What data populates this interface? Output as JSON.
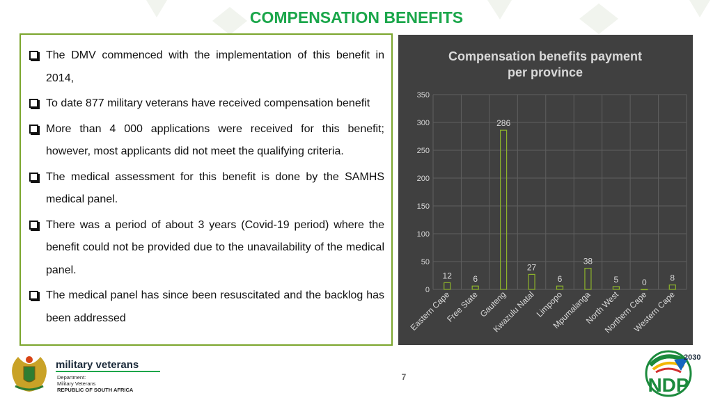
{
  "slide": {
    "title": "COMPENSATION BENEFITS",
    "page_number": "7"
  },
  "bullets": [
    "The DMV commenced with the implementation of this benefit in 2014,",
    "To date 877 military veterans have received compensation benefit",
    "More than 4 000 applications were received for this benefit; however, most applicants did not meet the qualifying criteria.",
    "The medical assessment for this benefit is done by the SAMHS medical panel.",
    "There was a period of about 3 years (Covid-19 period) where the benefit could not be provided due to the unavailability of the medical panel.",
    "The medical panel has since been resuscitated and the backlog has been addressed"
  ],
  "footer": {
    "brand_name": "military veterans",
    "dept_line1": "Department:",
    "dept_line2": "Military Veterans",
    "dept_line3": "REPUBLIC OF SOUTH AFRICA",
    "ndp_text": "NDP",
    "ndp_year": "2030"
  },
  "colors": {
    "title": "#1aa64a",
    "box_border": "#7aa52c",
    "chart_bg": "#404040",
    "bar_stroke": "#8db32b",
    "chart_text": "#d9d9d9",
    "grid": "#5f5f5f"
  },
  "chart_data": {
    "type": "bar",
    "title_lines": [
      "Compensation benefits payment",
      "per province"
    ],
    "categories": [
      "Eastern Cape",
      "Free State",
      "Gauteng",
      "Kwazulu Natal",
      "Limpopo",
      "Mpumalanga",
      "North West",
      "Northern Cape",
      "Western Cape"
    ],
    "values": [
      12,
      6,
      286,
      27,
      6,
      38,
      5,
      0,
      8
    ],
    "ylim": [
      0,
      350
    ],
    "yticks": [
      0,
      50,
      100,
      150,
      200,
      250,
      300,
      350
    ],
    "grid": true,
    "data_labels": true,
    "legend": "none"
  }
}
